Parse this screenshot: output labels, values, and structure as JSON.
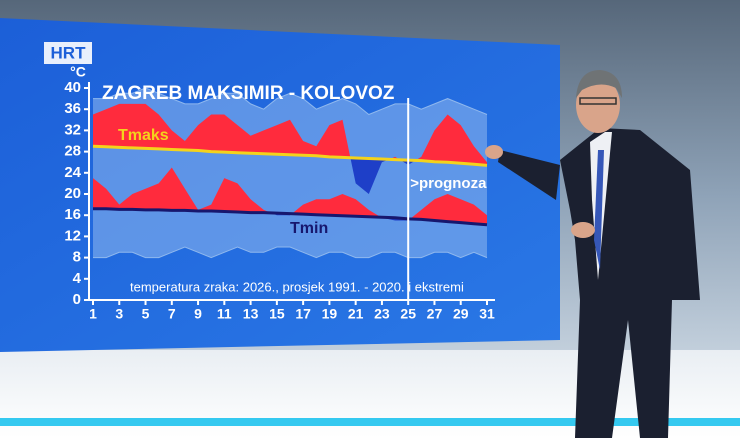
{
  "logo": "HRT",
  "chart_data": {
    "type": "anomaly-area",
    "title": "ZAGREB MAKSIMIR - KOLOVOZ",
    "y_label": "°C",
    "annotations": [
      ">prognoza",
      "temperatura zraka: 2026., prosjek 1991. - 2020. i ekstremi"
    ],
    "x": [
      1,
      2,
      3,
      4,
      5,
      6,
      7,
      8,
      9,
      10,
      11,
      12,
      13,
      14,
      15,
      16,
      17,
      18,
      19,
      20,
      21,
      22,
      23,
      24,
      25,
      26,
      27,
      28,
      29,
      30,
      31
    ],
    "xlim": [
      1,
      31
    ],
    "xticks": [
      1,
      3,
      5,
      7,
      9,
      11,
      13,
      15,
      17,
      19,
      21,
      23,
      25,
      27,
      29,
      31
    ],
    "ylim": [
      0,
      40
    ],
    "yticks": [
      0,
      4,
      8,
      12,
      16,
      20,
      24,
      28,
      32,
      36,
      40
    ],
    "forecast_start": 25,
    "above_color": "#ff2b3d",
    "below_color": "#1e3fc8",
    "series": [
      {
        "name": "Tmaks",
        "color": "#f4d31c",
        "values": [
          29.0,
          28.9,
          28.8,
          28.7,
          28.6,
          28.5,
          28.4,
          28.3,
          28.2,
          28.0,
          27.9,
          27.8,
          27.7,
          27.6,
          27.5,
          27.4,
          27.3,
          27.2,
          27.0,
          26.9,
          26.8,
          26.7,
          26.6,
          26.5,
          26.4,
          26.3,
          26.1,
          26.0,
          25.8,
          25.6,
          25.4
        ]
      },
      {
        "color": "#ff2b3d",
        "values": [
          35,
          36,
          37,
          37,
          37,
          35,
          32,
          30,
          33,
          35,
          35,
          33,
          31,
          32,
          33,
          34,
          30,
          29,
          33,
          34,
          22,
          20,
          26,
          27,
          25.5,
          27,
          32,
          35,
          33,
          29,
          26
        ]
      },
      {
        "name": "Tmin",
        "color": "#17176e",
        "values": [
          17.2,
          17.2,
          17.1,
          17.1,
          17.0,
          17.0,
          16.9,
          16.9,
          16.8,
          16.8,
          16.7,
          16.6,
          16.5,
          16.5,
          16.4,
          16.3,
          16.2,
          16.1,
          16.0,
          15.9,
          15.8,
          15.7,
          15.6,
          15.5,
          15.3,
          15.2,
          15.0,
          14.8,
          14.6,
          14.4,
          14.2
        ]
      },
      {
        "color": "#ff2b3d",
        "values": [
          23,
          21,
          18,
          20,
          21,
          22,
          25,
          21,
          17,
          18,
          23,
          22,
          19,
          17,
          16,
          16,
          18,
          19,
          19,
          20,
          19,
          17,
          15.5,
          15,
          15,
          17,
          19,
          20,
          19,
          18,
          16
        ]
      },
      {
        "color": "#8fb8ee",
        "values": [
          38,
          38,
          39,
          39,
          40,
          39,
          38,
          37,
          37,
          38,
          39,
          39,
          37,
          36,
          38,
          39,
          38,
          36,
          37,
          38,
          37,
          35,
          36,
          37,
          37,
          36,
          37,
          38,
          37,
          36,
          35
        ]
      },
      {
        "color": "#8fb8ee",
        "values": [
          8,
          8,
          9,
          9,
          8,
          8,
          9,
          10,
          9,
          8,
          9,
          10,
          9,
          9,
          10,
          10,
          9,
          8,
          9,
          9,
          8,
          8,
          9,
          9,
          8,
          8,
          9,
          9,
          8,
          9,
          8
        ]
      }
    ]
  }
}
